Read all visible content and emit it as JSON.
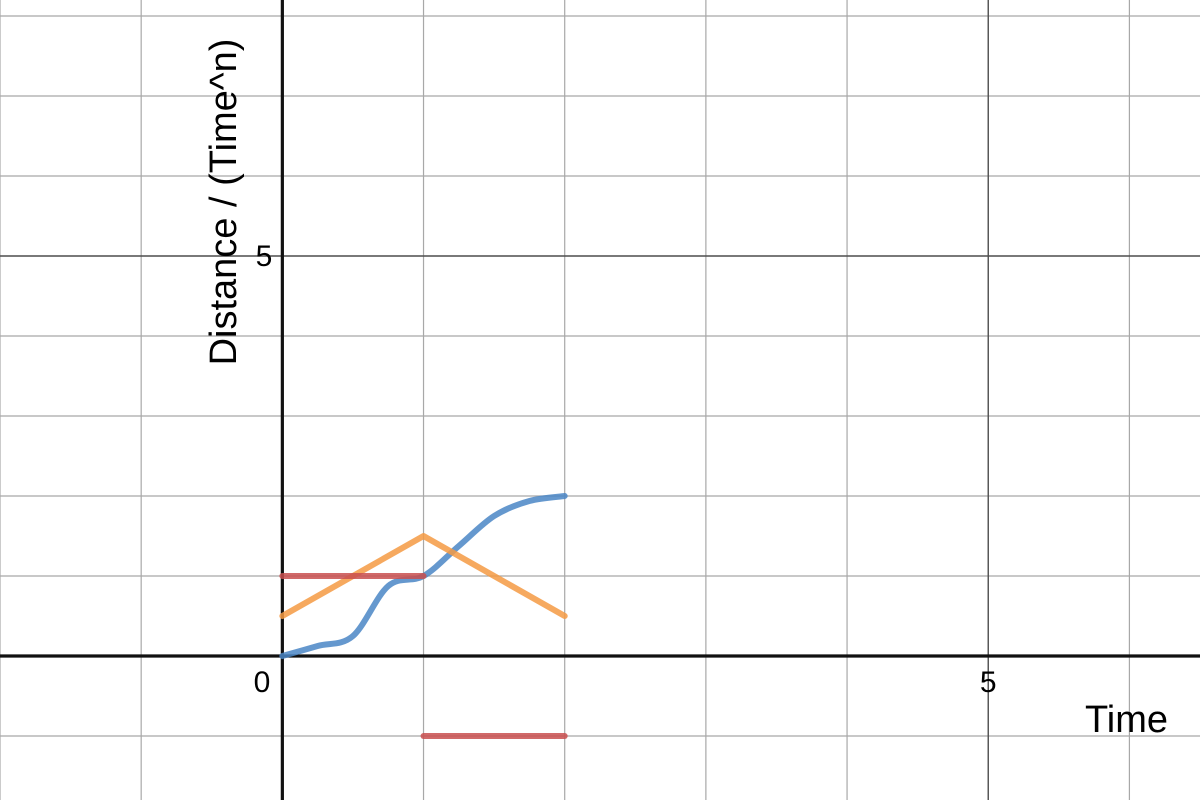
{
  "chart_data": {
    "type": "line",
    "title": "",
    "xlabel": "Time",
    "ylabel": "Distance / (Time^n)",
    "xlim": [
      -2,
      6.5
    ],
    "ylim": [
      -1.8,
      8.2
    ],
    "grid": true,
    "legend": "none",
    "x_ticks": [
      {
        "value": 0,
        "label": "0"
      },
      {
        "value": 5,
        "label": "5"
      }
    ],
    "y_ticks": [
      {
        "value": 5,
        "label": "5"
      }
    ],
    "series": [
      {
        "color": "#4a86c5",
        "x": [
          0,
          0.25,
          0.5,
          0.75,
          1.0,
          1.25,
          1.5,
          1.75,
          2.0
        ],
        "y": [
          0,
          0.125,
          0.25,
          0.875,
          1.0,
          1.375,
          1.75,
          1.9375,
          2.0
        ],
        "smooth": true
      },
      {
        "color": "#f59a43",
        "x": [
          0,
          1,
          2
        ],
        "y": [
          0.5,
          1.5,
          0.5
        ]
      },
      {
        "color": "#c94f4f",
        "x": [
          0,
          1
        ],
        "y": [
          1,
          1
        ]
      },
      {
        "color": "#c94f4f",
        "x": [
          1,
          2
        ],
        "y": [
          -1,
          -1
        ]
      }
    ]
  }
}
